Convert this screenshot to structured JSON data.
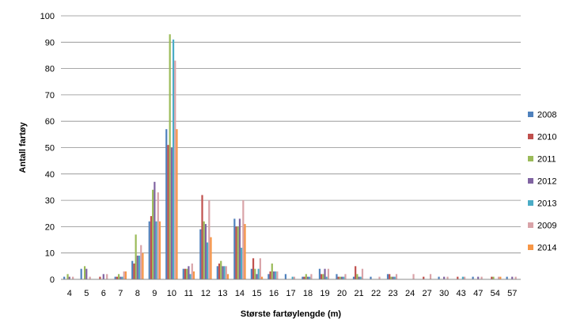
{
  "chart_data": {
    "type": "bar",
    "title": "",
    "xlabel": "Største fartøylengde (m)",
    "ylabel": "Antall fartøy",
    "ylim": [
      0,
      100
    ],
    "yticks": [
      0,
      10,
      20,
      30,
      40,
      50,
      60,
      70,
      80,
      90,
      100
    ],
    "grid": true,
    "legend_position": "right",
    "categories": [
      "4",
      "5",
      "6",
      "7",
      "8",
      "9",
      "10",
      "11",
      "12",
      "13",
      "14",
      "15",
      "16",
      "17",
      "18",
      "19",
      "20",
      "21",
      "22",
      "23",
      "24",
      "27",
      "30",
      "43",
      "47",
      "54",
      "57"
    ],
    "series": [
      {
        "name": "2008",
        "color": "#4f81bd",
        "values": [
          1,
          4,
          0,
          1,
          7,
          22,
          57,
          4,
          19,
          5,
          23,
          4,
          2,
          2,
          1,
          4,
          2,
          1,
          1,
          2,
          0,
          0,
          1,
          0,
          1,
          0,
          1
        ]
      },
      {
        "name": "2010",
        "color": "#c0504d",
        "values": [
          0,
          0,
          1,
          1,
          6,
          24,
          51,
          4,
          32,
          6,
          20,
          8,
          3,
          0,
          1,
          2,
          1,
          5,
          0,
          2,
          0,
          1,
          0,
          1,
          0,
          1,
          0
        ]
      },
      {
        "name": "2011",
        "color": "#9bbb59",
        "values": [
          2,
          5,
          0,
          2,
          17,
          34,
          93,
          4,
          22,
          7,
          20,
          4,
          6,
          0,
          2,
          2,
          1,
          2,
          0,
          1,
          0,
          0,
          0,
          0,
          0,
          1,
          0
        ]
      },
      {
        "name": "2012",
        "color": "#8064a2",
        "values": [
          1,
          4,
          2,
          1,
          9,
          37,
          50,
          5,
          21,
          5,
          23,
          2,
          3,
          0,
          1,
          4,
          1,
          1,
          0,
          1,
          0,
          0,
          1,
          0,
          1,
          0,
          1
        ]
      },
      {
        "name": "2013",
        "color": "#4bacc6",
        "values": [
          0,
          0,
          0,
          1,
          9,
          22,
          91,
          2,
          14,
          5,
          12,
          4,
          3,
          1,
          1,
          1,
          1,
          1,
          0,
          1,
          0,
          0,
          0,
          1,
          0,
          0,
          0
        ]
      },
      {
        "name": "2009",
        "color": "#d9a3a8",
        "values": [
          1,
          1,
          2,
          3,
          13,
          33,
          83,
          6,
          30,
          5,
          30,
          8,
          3,
          1,
          2,
          4,
          2,
          4,
          1,
          2,
          2,
          2,
          1,
          1,
          1,
          1,
          1
        ]
      },
      {
        "name": "2014",
        "color": "#f79646",
        "values": [
          0,
          0,
          0,
          3,
          10,
          22,
          57,
          3,
          16,
          2,
          21,
          1,
          0,
          0,
          0,
          0,
          0,
          0,
          0,
          0,
          0,
          0,
          0,
          0,
          0,
          1,
          0
        ]
      }
    ]
  }
}
